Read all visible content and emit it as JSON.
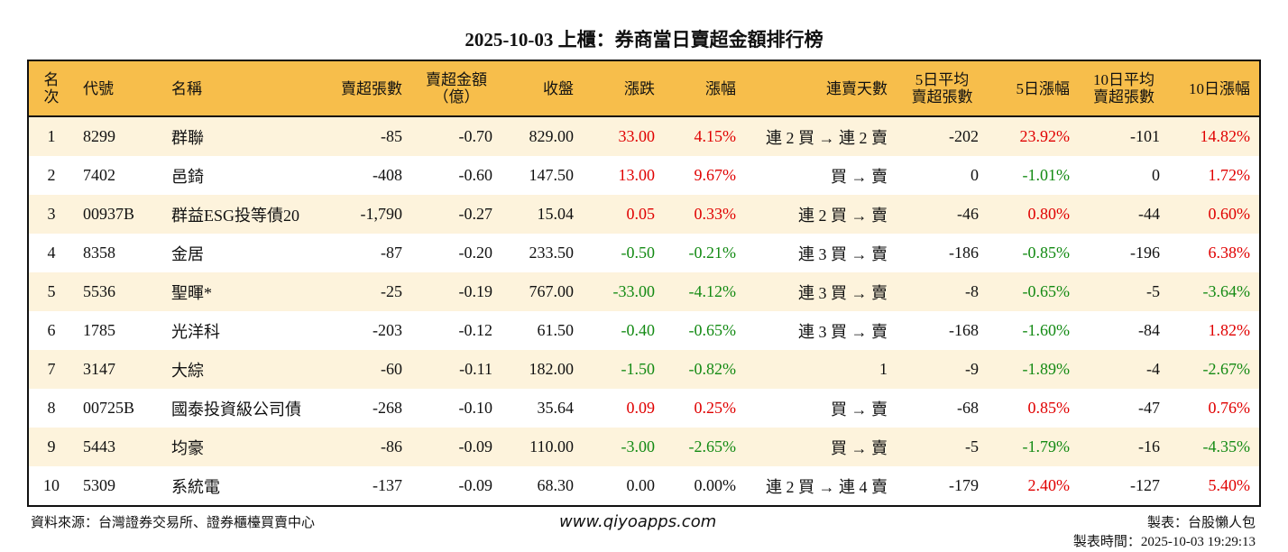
{
  "title": "2025-10-03 上櫃：券商當日賣超金額排行榜",
  "headers": [
    "名次",
    "代號",
    "名稱",
    "賣超張數",
    "賣超金額\n（億）",
    "收盤",
    "漲跌",
    "漲幅",
    "連賣天數",
    "5日平均\n賣超張數",
    "5日漲幅",
    "10日平均\n賣超張數",
    "10日漲幅"
  ],
  "rows": [
    [
      "1",
      "8299",
      "群聯",
      "-85",
      "-0.70",
      "829.00",
      "33.00",
      "4.15%",
      "連 2 買 → 連 2 賣",
      "-202",
      "23.92%",
      "-101",
      "14.82%"
    ],
    [
      "2",
      "7402",
      "邑錡",
      "-408",
      "-0.60",
      "147.50",
      "13.00",
      "9.67%",
      "買 → 賣",
      "0",
      "-1.01%",
      "0",
      "1.72%"
    ],
    [
      "3",
      "00937B",
      "群益ESG投等債20",
      "-1,790",
      "-0.27",
      "15.04",
      "0.05",
      "0.33%",
      "連 2 買 → 賣",
      "-46",
      "0.80%",
      "-44",
      "0.60%"
    ],
    [
      "4",
      "8358",
      "金居",
      "-87",
      "-0.20",
      "233.50",
      "-0.50",
      "-0.21%",
      "連 3 買 → 賣",
      "-186",
      "-0.85%",
      "-196",
      "6.38%"
    ],
    [
      "5",
      "5536",
      "聖暉*",
      "-25",
      "-0.19",
      "767.00",
      "-33.00",
      "-4.12%",
      "連 3 買 → 賣",
      "-8",
      "-0.65%",
      "-5",
      "-3.64%"
    ],
    [
      "6",
      "1785",
      "光洋科",
      "-203",
      "-0.12",
      "61.50",
      "-0.40",
      "-0.65%",
      "連 3 買 → 賣",
      "-168",
      "-1.60%",
      "-84",
      "1.82%"
    ],
    [
      "7",
      "3147",
      "大綜",
      "-60",
      "-0.11",
      "182.00",
      "-1.50",
      "-0.82%",
      "1",
      "-9",
      "-1.89%",
      "-4",
      "-2.67%"
    ],
    [
      "8",
      "00725B",
      "國泰投資級公司債",
      "-268",
      "-0.10",
      "35.64",
      "0.09",
      "0.25%",
      "買 → 賣",
      "-68",
      "0.85%",
      "-47",
      "0.76%"
    ],
    [
      "9",
      "5443",
      "均豪",
      "-86",
      "-0.09",
      "110.00",
      "-3.00",
      "-2.65%",
      "買 → 賣",
      "-5",
      "-1.79%",
      "-16",
      "-4.35%"
    ],
    [
      "10",
      "5309",
      "系統電",
      "-137",
      "-0.09",
      "68.30",
      "0.00",
      "0.00%",
      "連 2 買 → 連 4 賣",
      "-179",
      "2.40%",
      "-127",
      "5.40%"
    ]
  ],
  "colors": {
    "header_bg": "#F7BE4B",
    "odd_row_bg": "#FDF3DC",
    "up": "#E00000",
    "down": "#138A13"
  },
  "footer": {
    "source": "資料來源：台灣證券交易所、證券櫃檯買賣中心",
    "url": "www.qiyoapps.com",
    "maker": "製表：台股懶人包",
    "time": "製表時間：2025-10-03 19:29:13"
  }
}
